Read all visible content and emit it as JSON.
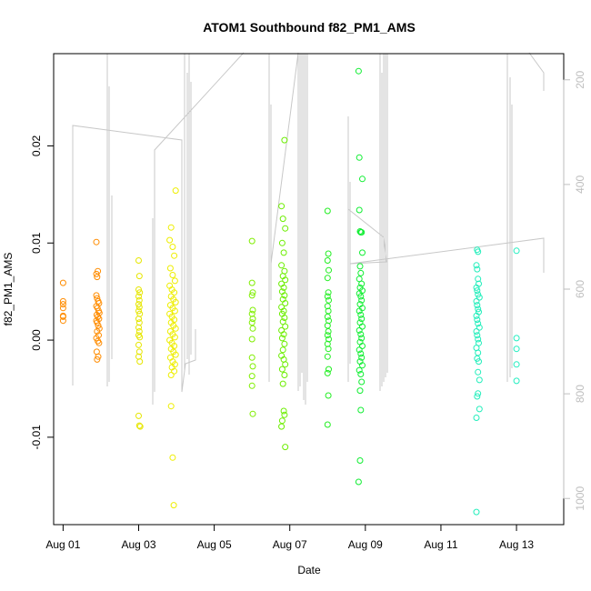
{
  "chart_data": {
    "type": "scatter",
    "title": "ATOM1 Southbound f82_PM1_AMS",
    "xlabel": "Date",
    "ylabel": "f82_PM1_AMS",
    "xlim": [
      -0.25,
      13.25
    ],
    "ylim": [
      -0.019,
      0.0295
    ],
    "x_ticks": [
      {
        "v": 0,
        "label": "Aug 01"
      },
      {
        "v": 2,
        "label": "Aug 03"
      },
      {
        "v": 4,
        "label": "Aug 05"
      },
      {
        "v": 6,
        "label": "Aug 07"
      },
      {
        "v": 8,
        "label": "Aug 09"
      },
      {
        "v": 10,
        "label": "Aug 11"
      },
      {
        "v": 12,
        "label": "Aug 13"
      }
    ],
    "y_ticks": [
      {
        "v": -0.01,
        "label": "-0.01"
      },
      {
        "v": 0.0,
        "label": "0.00"
      },
      {
        "v": 0.01,
        "label": "0.01"
      },
      {
        "v": 0.02,
        "label": "0.02"
      }
    ],
    "y2_lim": [
      1050,
      150
    ],
    "y2_ticks": [
      {
        "v": 200,
        "label": "200"
      },
      {
        "v": 400,
        "label": "400"
      },
      {
        "v": 600,
        "label": "600"
      },
      {
        "v": 800,
        "label": "800"
      },
      {
        "v": 1000,
        "label": "1000"
      }
    ],
    "secondary_line_color": "#c8c8c8",
    "groups": [
      {
        "color": "#ff8c00",
        "points": [
          [
            0.0,
            0.0059
          ],
          [
            0.0,
            0.004
          ],
          [
            0.0,
            0.0037
          ],
          [
            0.0,
            0.0033
          ],
          [
            0.0,
            0.0025
          ],
          [
            0.0,
            0.0024
          ],
          [
            0.0,
            0.002
          ],
          [
            0.88,
            0.0101
          ],
          [
            0.88,
            0.0068
          ],
          [
            0.9,
            0.0065
          ],
          [
            0.92,
            0.0071
          ],
          [
            0.88,
            0.0046
          ],
          [
            0.9,
            0.0043
          ],
          [
            0.93,
            0.004
          ],
          [
            0.95,
            0.0038
          ],
          [
            0.88,
            0.0035
          ],
          [
            0.91,
            0.0033
          ],
          [
            0.94,
            0.003
          ],
          [
            0.96,
            0.0028
          ],
          [
            0.89,
            0.0026
          ],
          [
            0.92,
            0.0024
          ],
          [
            0.95,
            0.0022
          ],
          [
            0.88,
            0.002
          ],
          [
            0.9,
            0.0018
          ],
          [
            0.93,
            0.0015
          ],
          [
            0.96,
            0.0012
          ],
          [
            0.9,
            0.0009
          ],
          [
            0.94,
            0.0005
          ],
          [
            0.88,
            0.0002
          ],
          [
            0.92,
            -0.0001
          ],
          [
            0.95,
            -0.0003
          ],
          [
            0.89,
            -0.0012
          ],
          [
            0.93,
            -0.0017
          ],
          [
            0.9,
            -0.002
          ]
        ]
      },
      {
        "color": "#e6e600",
        "points": [
          [
            2.0,
            0.0082
          ],
          [
            2.02,
            0.0066
          ],
          [
            2.0,
            0.0052
          ],
          [
            2.03,
            0.0049
          ],
          [
            2.0,
            0.0045
          ],
          [
            2.02,
            0.0041
          ],
          [
            2.0,
            0.0037
          ],
          [
            2.02,
            0.0034
          ],
          [
            2.0,
            0.003
          ],
          [
            2.03,
            0.0027
          ],
          [
            2.0,
            0.0022
          ],
          [
            2.02,
            0.0018
          ],
          [
            2.0,
            0.0013
          ],
          [
            2.02,
            0.0009
          ],
          [
            2.0,
            0.0005
          ],
          [
            2.03,
            0.0003
          ],
          [
            2.0,
            -0.0005
          ],
          [
            2.02,
            -0.0012
          ],
          [
            2.0,
            -0.0017
          ],
          [
            2.03,
            -0.0022
          ],
          [
            2.0,
            -0.0078
          ],
          [
            2.02,
            -0.0088
          ],
          [
            2.04,
            -0.0089
          ]
        ]
      },
      {
        "color": "#eeee00",
        "points": [
          [
            2.82,
            0.0103
          ],
          [
            2.86,
            0.0116
          ],
          [
            2.9,
            0.0096
          ],
          [
            2.94,
            0.0087
          ],
          [
            2.98,
            0.0154
          ],
          [
            2.84,
            0.0074
          ],
          [
            2.9,
            0.0067
          ],
          [
            2.96,
            0.0061
          ],
          [
            2.82,
            0.0056
          ],
          [
            2.88,
            0.0052
          ],
          [
            2.94,
            0.0049
          ],
          [
            2.86,
            0.0045
          ],
          [
            2.92,
            0.0042
          ],
          [
            2.98,
            0.0039
          ],
          [
            2.84,
            0.0036
          ],
          [
            2.9,
            0.0033
          ],
          [
            2.96,
            0.003
          ],
          [
            2.82,
            0.0027
          ],
          [
            2.88,
            0.0024
          ],
          [
            2.94,
            0.0021
          ],
          [
            2.86,
            0.0018
          ],
          [
            2.92,
            0.0015
          ],
          [
            2.98,
            0.0012
          ],
          [
            2.84,
            0.0009
          ],
          [
            2.9,
            0.0006
          ],
          [
            2.96,
            0.0003
          ],
          [
            2.82,
            0.0
          ],
          [
            2.88,
            -0.0003
          ],
          [
            2.94,
            -0.0006
          ],
          [
            2.86,
            -0.0009
          ],
          [
            2.92,
            -0.0012
          ],
          [
            2.98,
            -0.0015
          ],
          [
            2.84,
            -0.0018
          ],
          [
            2.9,
            -0.0022
          ],
          [
            2.96,
            -0.0025
          ],
          [
            2.88,
            -0.0028
          ],
          [
            2.94,
            -0.0032
          ],
          [
            2.86,
            -0.0036
          ],
          [
            2.86,
            -0.0068
          ],
          [
            2.9,
            -0.0121
          ],
          [
            2.93,
            -0.017
          ]
        ]
      },
      {
        "color": "#7fee00",
        "points": [
          [
            5.0,
            0.0102
          ],
          [
            5.0,
            0.0059
          ],
          [
            5.02,
            0.0049
          ],
          [
            5.0,
            0.0046
          ],
          [
            5.02,
            0.0031
          ],
          [
            5.0,
            0.0027
          ],
          [
            5.02,
            0.0022
          ],
          [
            5.0,
            0.0018
          ],
          [
            5.02,
            0.0012
          ],
          [
            5.0,
            0.0001
          ],
          [
            5.0,
            -0.0018
          ],
          [
            5.02,
            -0.0027
          ],
          [
            5.0,
            -0.0037
          ],
          [
            5.0,
            -0.0047
          ],
          [
            5.02,
            -0.0076
          ]
        ]
      },
      {
        "color": "#6cee00",
        "points": [
          [
            5.78,
            0.0138
          ],
          [
            5.82,
            0.0125
          ],
          [
            5.86,
            0.0206
          ],
          [
            5.88,
            0.0115
          ],
          [
            5.8,
            0.01
          ],
          [
            5.84,
            0.009
          ],
          [
            5.78,
            0.0077
          ],
          [
            5.86,
            0.0071
          ],
          [
            5.82,
            0.0066
          ],
          [
            5.88,
            0.0062
          ],
          [
            5.78,
            0.0058
          ],
          [
            5.84,
            0.0054
          ],
          [
            5.8,
            0.005
          ],
          [
            5.86,
            0.0046
          ],
          [
            5.82,
            0.0042
          ],
          [
            5.88,
            0.0038
          ],
          [
            5.78,
            0.0034
          ],
          [
            5.84,
            0.003
          ],
          [
            5.8,
            0.0027
          ],
          [
            5.86,
            0.0023
          ],
          [
            5.82,
            0.0019
          ],
          [
            5.88,
            0.0014
          ],
          [
            5.78,
            0.001
          ],
          [
            5.84,
            0.0006
          ],
          [
            5.8,
            0.0002
          ],
          [
            5.86,
            -0.0004
          ],
          [
            5.82,
            -0.001
          ],
          [
            5.78,
            -0.0016
          ],
          [
            5.84,
            -0.002
          ],
          [
            5.88,
            -0.0025
          ],
          [
            5.8,
            -0.003
          ],
          [
            5.86,
            -0.0036
          ],
          [
            5.82,
            -0.0045
          ],
          [
            5.84,
            -0.0073
          ],
          [
            5.86,
            -0.0077
          ],
          [
            5.8,
            -0.0083
          ],
          [
            5.78,
            -0.0089
          ],
          [
            5.88,
            -0.011
          ]
        ]
      },
      {
        "color": "#22ee22",
        "points": [
          [
            7.0,
            0.0133
          ],
          [
            7.02,
            0.0089
          ],
          [
            7.0,
            0.0082
          ],
          [
            7.03,
            0.0072
          ],
          [
            7.0,
            0.0064
          ],
          [
            7.02,
            0.0049
          ],
          [
            7.0,
            0.0045
          ],
          [
            7.03,
            0.0041
          ],
          [
            7.0,
            0.0035
          ],
          [
            7.02,
            0.003
          ],
          [
            7.0,
            0.0024
          ],
          [
            7.03,
            0.002
          ],
          [
            7.0,
            0.0015
          ],
          [
            7.02,
            0.0009
          ],
          [
            7.0,
            0.0005
          ],
          [
            7.03,
            0.0001
          ],
          [
            7.0,
            -0.0004
          ],
          [
            7.02,
            -0.0009
          ],
          [
            7.0,
            -0.0017
          ],
          [
            7.03,
            -0.003
          ],
          [
            7.0,
            -0.0034
          ],
          [
            7.02,
            -0.0057
          ],
          [
            7.0,
            -0.0087
          ]
        ]
      },
      {
        "color": "#11ee33",
        "points": [
          [
            7.82,
            0.0277
          ],
          [
            7.84,
            0.0188
          ],
          [
            7.92,
            0.0166
          ],
          [
            7.84,
            0.0134
          ],
          [
            7.86,
            0.0112
          ],
          [
            7.88,
            0.0111
          ],
          [
            7.9,
            0.0111
          ],
          [
            7.92,
            0.009
          ],
          [
            7.86,
            0.0076
          ],
          [
            7.88,
            0.0069
          ],
          [
            7.84,
            0.0063
          ],
          [
            7.9,
            0.0058
          ],
          [
            7.86,
            0.0054
          ],
          [
            7.92,
            0.0051
          ],
          [
            7.84,
            0.0048
          ],
          [
            7.88,
            0.0045
          ],
          [
            7.9,
            0.0041
          ],
          [
            7.86,
            0.0037
          ],
          [
            7.92,
            0.0033
          ],
          [
            7.84,
            0.003
          ],
          [
            7.88,
            0.0026
          ],
          [
            7.9,
            0.0022
          ],
          [
            7.86,
            0.0018
          ],
          [
            7.92,
            0.0014
          ],
          [
            7.84,
            0.001
          ],
          [
            7.88,
            0.0006
          ],
          [
            7.9,
            0.0002
          ],
          [
            7.86,
            -0.0002
          ],
          [
            7.92,
            -0.0006
          ],
          [
            7.84,
            -0.001
          ],
          [
            7.88,
            -0.0014
          ],
          [
            7.9,
            -0.0018
          ],
          [
            7.86,
            -0.0022
          ],
          [
            7.92,
            -0.0026
          ],
          [
            7.84,
            -0.0031
          ],
          [
            7.88,
            -0.0035
          ],
          [
            7.9,
            -0.0043
          ],
          [
            7.86,
            -0.0052
          ],
          [
            7.88,
            -0.0072
          ],
          [
            7.86,
            -0.0124
          ],
          [
            7.82,
            -0.0146
          ]
        ]
      },
      {
        "color": "#22eebb",
        "points": [
          [
            10.96,
            0.0093
          ],
          [
            10.98,
            0.0091
          ],
          [
            10.94,
            0.0077
          ],
          [
            10.96,
            0.0073
          ],
          [
            10.98,
            0.0063
          ],
          [
            11.0,
            0.0058
          ],
          [
            10.94,
            0.0054
          ],
          [
            10.96,
            0.0051
          ],
          [
            10.98,
            0.0047
          ],
          [
            11.02,
            0.0044
          ],
          [
            10.94,
            0.004
          ],
          [
            10.96,
            0.0036
          ],
          [
            10.98,
            0.0032
          ],
          [
            11.0,
            0.0029
          ],
          [
            10.94,
            0.0025
          ],
          [
            10.96,
            0.0021
          ],
          [
            10.98,
            0.0017
          ],
          [
            11.02,
            0.0013
          ],
          [
            10.94,
            0.0009
          ],
          [
            10.96,
            0.0005
          ],
          [
            10.98,
            0.0001
          ],
          [
            11.0,
            -0.0003
          ],
          [
            10.94,
            -0.0008
          ],
          [
            10.98,
            -0.0013
          ],
          [
            10.96,
            -0.0019
          ],
          [
            11.0,
            -0.0022
          ],
          [
            10.98,
            -0.0033
          ],
          [
            11.02,
            -0.0041
          ],
          [
            10.98,
            -0.0055
          ],
          [
            10.96,
            -0.0058
          ],
          [
            11.02,
            -0.0071
          ],
          [
            10.94,
            -0.008
          ],
          [
            10.94,
            -0.0177
          ]
        ]
      },
      {
        "color": "#22eec0",
        "points": [
          [
            12.0,
            0.0092
          ],
          [
            12.0,
            0.0002
          ],
          [
            12.0,
            -0.0009
          ],
          [
            12.0,
            -0.0025
          ],
          [
            12.0,
            -0.0042
          ]
        ]
      }
    ]
  }
}
